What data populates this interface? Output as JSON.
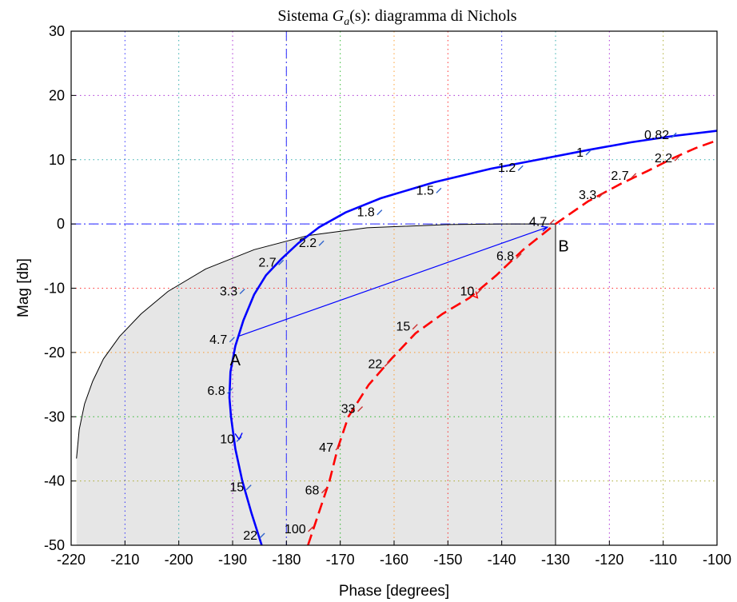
{
  "chart_data": {
    "type": "line",
    "title": "Sistema G_a(s): diagramma di Nichols",
    "title_parts": {
      "prefix": "Sistema ",
      "symbol": "G",
      "subscript": "a",
      "suffix": "(s): diagramma di Nichols"
    },
    "xlabel": "Phase [degrees]",
    "ylabel": "Mag [db]",
    "xlim": [
      -220,
      -100
    ],
    "ylim": [
      -50,
      30
    ],
    "xticks": [
      -220,
      -210,
      -200,
      -190,
      -180,
      -170,
      -160,
      -150,
      -140,
      -130,
      -120,
      -110,
      -100
    ],
    "yticks": [
      -50,
      -40,
      -30,
      -20,
      -10,
      0,
      10,
      20,
      30
    ],
    "grid": true,
    "colors": {
      "blue_series": "#0000ff",
      "red_series": "#ff0000",
      "shaded_region": "#e6e6e6",
      "reference_lines": "#4c4cff",
      "grid_colors": [
        "#ff0000",
        "#0000ff",
        "#009999",
        "#9900cc",
        "#999900",
        "#00aa00",
        "#ff8800"
      ]
    },
    "reference_lines": [
      {
        "orientation": "vertical",
        "value": -180
      },
      {
        "orientation": "horizontal",
        "value": 0
      }
    ],
    "series": [
      {
        "color": "#0000ff",
        "style": "solid",
        "points": [
          [
            -184.6,
            -50
          ],
          [
            -186.5,
            -45
          ],
          [
            -188.2,
            -40
          ],
          [
            -189.5,
            -35
          ],
          [
            -190.3,
            -30
          ],
          [
            -190.6,
            -27
          ],
          [
            -190.4,
            -23
          ],
          [
            -189.5,
            -19
          ],
          [
            -188,
            -15
          ],
          [
            -186,
            -11
          ],
          [
            -183.8,
            -8
          ],
          [
            -181,
            -5.5
          ],
          [
            -177.8,
            -3
          ],
          [
            -173.9,
            -0.5
          ],
          [
            -169,
            1.8
          ],
          [
            -162.5,
            4
          ],
          [
            -152.5,
            6.5
          ],
          [
            -142,
            8.6
          ],
          [
            -132,
            10.2
          ],
          [
            -124,
            11.5
          ],
          [
            -116,
            12.7
          ],
          [
            -108,
            13.7
          ],
          [
            -100,
            14.5
          ]
        ],
        "labels": [
          {
            "text": "22",
            "x": -184.5,
            "y": -48.5
          },
          {
            "text": "15",
            "x": -187,
            "y": -41
          },
          {
            "text": "10",
            "x": -188.8,
            "y": -33.5
          },
          {
            "text": "6.8",
            "x": -190.5,
            "y": -26
          },
          {
            "text": "4.7",
            "x": -190.1,
            "y": -18
          },
          {
            "text": "3.3",
            "x": -188.2,
            "y": -10.5
          },
          {
            "text": "2.7",
            "x": -181,
            "y": -6
          },
          {
            "text": "2.2",
            "x": -173.5,
            "y": -3
          },
          {
            "text": "1.8",
            "x": -162.7,
            "y": 1.8
          },
          {
            "text": "1.5",
            "x": -151.7,
            "y": 5.2
          },
          {
            "text": "1.2",
            "x": -136.5,
            "y": 8.7
          },
          {
            "text": "1",
            "x": -123.9,
            "y": 11.1
          },
          {
            "text": "0.82",
            "x": -108,
            "y": 13.8
          }
        ]
      },
      {
        "color": "#ff0000",
        "style": "dashed",
        "points": [
          [
            -176,
            -50
          ],
          [
            -174,
            -45
          ],
          [
            -172,
            -40
          ],
          [
            -170.5,
            -35
          ],
          [
            -168.5,
            -30
          ],
          [
            -164.7,
            -25
          ],
          [
            -160.5,
            -21
          ],
          [
            -156,
            -17
          ],
          [
            -151,
            -14
          ],
          [
            -146,
            -11.5
          ],
          [
            -141,
            -8
          ],
          [
            -136,
            -4
          ],
          [
            -130,
            0
          ],
          [
            -124,
            3.5
          ],
          [
            -118,
            6.2
          ],
          [
            -113,
            8.2
          ],
          [
            -108,
            10.3
          ],
          [
            -104,
            11.8
          ],
          [
            -100,
            13
          ]
        ],
        "labels": [
          {
            "text": "100",
            "x": -175.5,
            "y": -47.5
          },
          {
            "text": "68",
            "x": -173,
            "y": -41.5
          },
          {
            "text": "47",
            "x": -170.4,
            "y": -34.8
          },
          {
            "text": "33",
            "x": -166.3,
            "y": -28.8
          },
          {
            "text": "22",
            "x": -161.3,
            "y": -21.8
          },
          {
            "text": "15",
            "x": -156.1,
            "y": -16
          },
          {
            "text": "10",
            "x": -144.2,
            "y": -10.5
          },
          {
            "text": "6.8",
            "x": -136.8,
            "y": -5
          },
          {
            "text": "4.7",
            "x": -130.7,
            "y": 0.3
          },
          {
            "text": "3.3",
            "x": -121.5,
            "y": 4.5
          },
          {
            "text": "2.7",
            "x": -115.5,
            "y": 7.5
          },
          {
            "text": "2.2",
            "x": -107.4,
            "y": 10.2
          }
        ]
      },
      {
        "color": "#000000",
        "style": "thin",
        "points": [
          [
            -219,
            -36.5
          ],
          [
            -218.5,
            -32
          ],
          [
            -217.5,
            -28
          ],
          [
            -216,
            -24.5
          ],
          [
            -214,
            -21
          ],
          [
            -211,
            -17.5
          ],
          [
            -207,
            -14
          ],
          [
            -202,
            -10.5
          ],
          [
            -195,
            -7
          ],
          [
            -186,
            -4
          ],
          [
            -176,
            -1.8
          ],
          [
            -165,
            -0.6
          ],
          [
            -150,
            -0.1
          ],
          [
            -140,
            0
          ],
          [
            -130,
            0
          ]
        ]
      }
    ],
    "shaded_region": {
      "boundary": "black curve from (-219, -50) up to (-130, 0), vertical line x = -130 down to -50",
      "fill": "#e6e6e6"
    },
    "segment_AB": {
      "from": [
        -189,
        -17.5
      ],
      "to": [
        -131.5,
        -0.5
      ],
      "color": "#0000ff"
    },
    "annotations": [
      {
        "text": "A",
        "x": -190.5,
        "y": -21
      },
      {
        "text": "B",
        "x": -129.5,
        "y": -3.3
      }
    ]
  }
}
